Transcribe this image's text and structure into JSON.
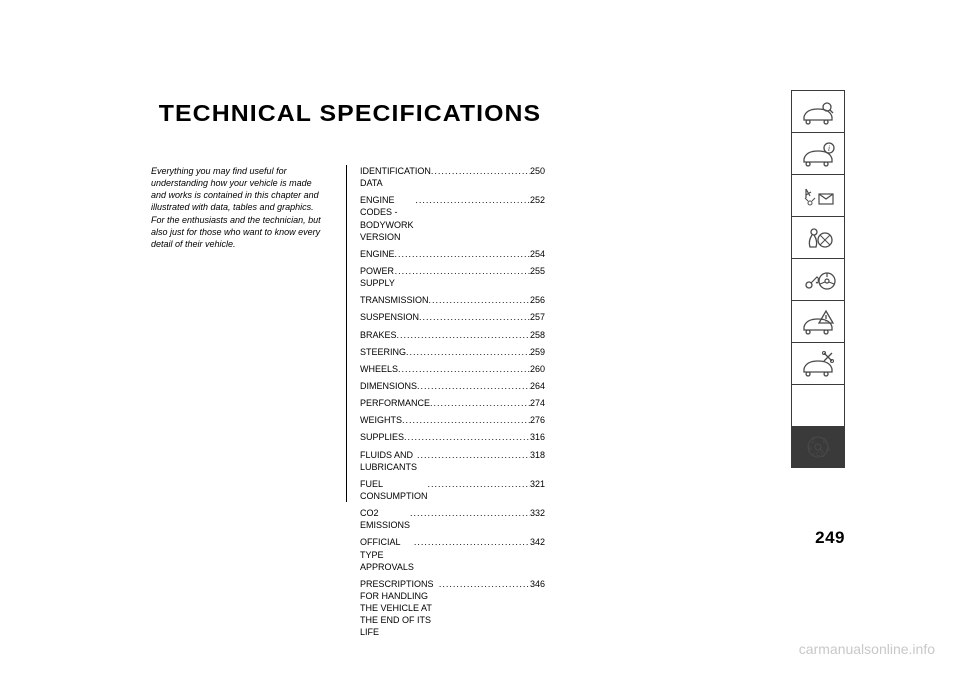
{
  "title": "TECHNICAL SPECIFICATIONS",
  "intro": "Everything you may find useful for understanding how your vehicle is made and works is contained in this chapter and illustrated with data, tables and graphics. For the enthusiasts and the technician, but also just for those who want to know every detail of their vehicle.",
  "toc": [
    {
      "label": "IDENTIFICATION DATA",
      "page": "250"
    },
    {
      "label": "ENGINE CODES - BODYWORK VERSION",
      "page": "252"
    },
    {
      "label": "ENGINE",
      "page": "254"
    },
    {
      "label": "POWER SUPPLY",
      "page": "255"
    },
    {
      "label": "TRANSMISSION",
      "page": "256"
    },
    {
      "label": "SUSPENSION",
      "page": "257"
    },
    {
      "label": "BRAKES",
      "page": "258"
    },
    {
      "label": "STEERING",
      "page": "259"
    },
    {
      "label": "WHEELS",
      "page": "260"
    },
    {
      "label": "DIMENSIONS",
      "page": "264"
    },
    {
      "label": "PERFORMANCE",
      "page": "274"
    },
    {
      "label": "WEIGHTS",
      "page": "276"
    },
    {
      "label": "SUPPLIES",
      "page": "316"
    },
    {
      "label": "FLUIDS AND LUBRICANTS",
      "page": "318"
    },
    {
      "label": "FUEL CONSUMPTION",
      "page": "321"
    },
    {
      "label": "CO2 EMISSIONS",
      "page": "332"
    },
    {
      "label": "OFFICIAL TYPE APPROVALS",
      "page": "342"
    },
    {
      "label": "PRESCRIPTIONS FOR HANDLING THE VEHICLE AT THE END OF ITS LIFE",
      "page": "346"
    }
  ],
  "page_number": "249",
  "watermark": "carmanualsonline.info",
  "sidebar": {
    "stroke": "#4a4a4a",
    "active_index": 8,
    "icons": [
      "car-search",
      "car-info",
      "lights-letter",
      "airbag",
      "key-wheel",
      "car-warning",
      "car-tools",
      "tech-spec",
      "alpha-index"
    ]
  }
}
